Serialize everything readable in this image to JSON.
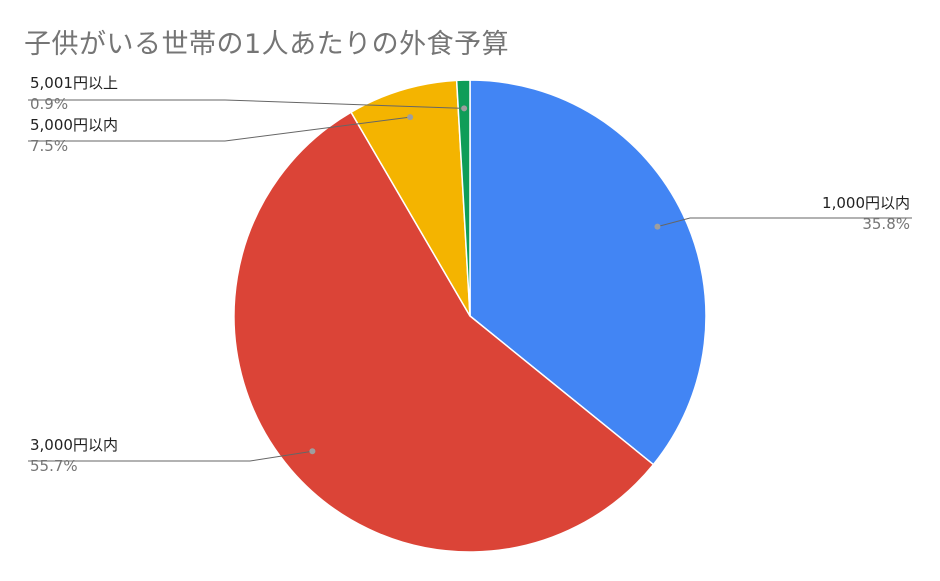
{
  "chart_data": {
    "type": "pie",
    "title": "子供がいる世帯の1人あたりの外食予算",
    "legend": "none",
    "slices": [
      {
        "label": "1,000円以内",
        "value": 35.8,
        "value_label": "35.8%",
        "color": "#4285F4"
      },
      {
        "label": "3,000円以内",
        "value": 55.7,
        "value_label": "55.7%",
        "color": "#DB4437"
      },
      {
        "label": "5,000円以内",
        "value": 7.5,
        "value_label": "7.5%",
        "color": "#F4B400"
      },
      {
        "label": "5,001円以上",
        "value": 0.9,
        "value_label": "0.9%",
        "color": "#0F9D58"
      }
    ]
  }
}
